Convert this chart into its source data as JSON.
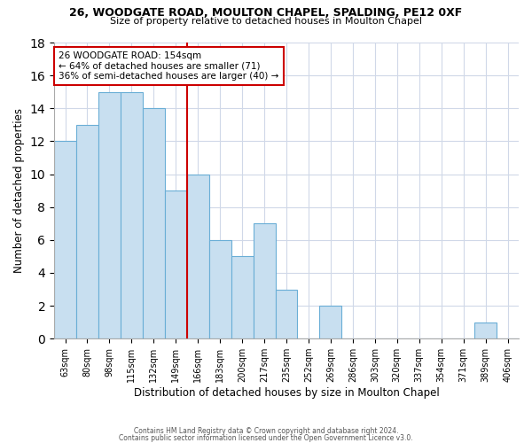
{
  "title": "26, WOODGATE ROAD, MOULTON CHAPEL, SPALDING, PE12 0XF",
  "subtitle": "Size of property relative to detached houses in Moulton Chapel",
  "xlabel": "Distribution of detached houses by size in Moulton Chapel",
  "ylabel": "Number of detached properties",
  "footer_line1": "Contains HM Land Registry data © Crown copyright and database right 2024.",
  "footer_line2": "Contains public sector information licensed under the Open Government Licence v3.0.",
  "annotation_line1": "26 WOODGATE ROAD: 154sqm",
  "annotation_line2": "← 64% of detached houses are smaller (71)",
  "annotation_line3": "36% of semi-detached houses are larger (40) →",
  "bar_labels": [
    "63sqm",
    "80sqm",
    "98sqm",
    "115sqm",
    "132sqm",
    "149sqm",
    "166sqm",
    "183sqm",
    "200sqm",
    "217sqm",
    "235sqm",
    "252sqm",
    "269sqm",
    "286sqm",
    "303sqm",
    "320sqm",
    "337sqm",
    "354sqm",
    "371sqm",
    "389sqm",
    "406sqm"
  ],
  "bar_values": [
    12,
    13,
    15,
    15,
    14,
    9,
    10,
    6,
    5,
    7,
    3,
    0,
    2,
    0,
    0,
    0,
    0,
    0,
    0,
    1,
    0
  ],
  "bar_color": "#c8dff0",
  "bar_edge_color": "#6aaed6",
  "vline_index": 5.5,
  "vline_color": "#cc0000",
  "annotation_box_color": "#cc0000",
  "ylim": [
    0,
    18
  ],
  "yticks": [
    0,
    2,
    4,
    6,
    8,
    10,
    12,
    14,
    16,
    18
  ],
  "bg_color": "#FFFFFF",
  "grid_color": "#d0d8e8"
}
